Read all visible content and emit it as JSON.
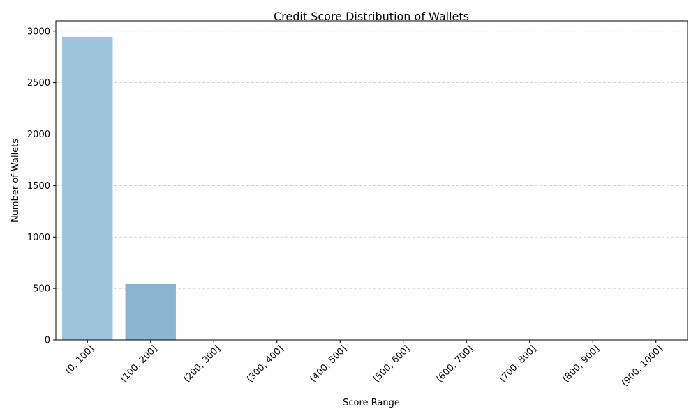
{
  "chart_data": {
    "type": "bar",
    "title": "Credit Score Distribution of Wallets",
    "xlabel": "Score Range",
    "ylabel": "Number of Wallets",
    "categories": [
      "(0, 100]",
      "(100, 200]",
      "(200, 300]",
      "(300, 400]",
      "(400, 500]",
      "(500, 600]",
      "(600, 700]",
      "(700, 800]",
      "(800, 900]",
      "(900, 1000]"
    ],
    "values": [
      2945,
      545,
      0,
      0,
      0,
      0,
      0,
      0,
      0,
      0
    ],
    "bar_colors": [
      "#9ec4dc",
      "#8cb3d0",
      "#7aa2c4",
      "#6f95bb",
      "#6688b2",
      "#5e7ba8",
      "#566e9f",
      "#4e6296",
      "#47568d",
      "#404a84"
    ],
    "ylim": [
      0,
      3100
    ],
    "yticks": [
      0,
      500,
      1000,
      1500,
      2000,
      2500,
      3000
    ],
    "grid": "y-dashed"
  }
}
